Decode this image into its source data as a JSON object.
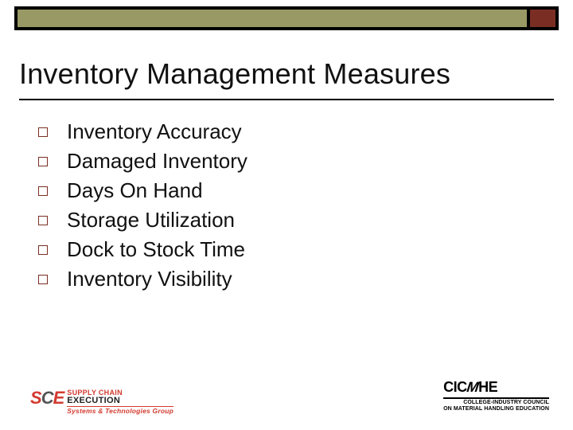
{
  "colors": {
    "olive": "#999966",
    "maroon": "#7a2e23",
    "black": "#000000",
    "sce_red": "#d33a2f",
    "sce_gray": "#555555",
    "text": "#111111",
    "background": "#ffffff"
  },
  "title": "Inventory Management Measures",
  "bullets": [
    "Inventory Accuracy",
    "Damaged Inventory",
    "Days On Hand",
    "Storage Utilization",
    "Dock to Stock Time",
    "Inventory Visibility"
  ],
  "footer": {
    "left": {
      "mark_s": "S",
      "mark_c": "C",
      "mark_e": "E",
      "line1": "SUPPLY CHAIN",
      "line2": "EXECUTION",
      "line3": "Systems & Technologies Group"
    },
    "right": {
      "mark": "CICMHE",
      "sub1": "COLLEGE-INDUSTRY COUNCIL",
      "sub2": "ON MATERIAL HANDLING EDUCATION"
    }
  }
}
